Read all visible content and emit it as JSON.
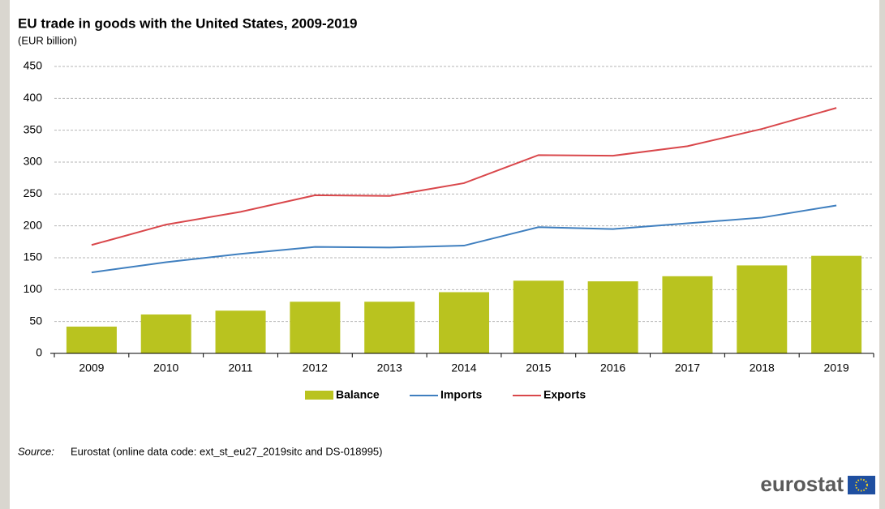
{
  "chart_data": {
    "type": "combo",
    "title": "EU trade in goods with the United States, 2009-2019",
    "subtitle": "(EUR billion)",
    "categories": [
      "2009",
      "2010",
      "2011",
      "2012",
      "2013",
      "2014",
      "2015",
      "2016",
      "2017",
      "2018",
      "2019"
    ],
    "series": [
      {
        "name": "Balance",
        "type": "bar",
        "color": "#b9c31f",
        "values": [
          42,
          61,
          67,
          81,
          81,
          96,
          114,
          113,
          121,
          138,
          153
        ]
      },
      {
        "name": "Imports",
        "type": "line",
        "color": "#3f7fbf",
        "values": [
          127,
          143,
          156,
          167,
          166,
          169,
          198,
          195,
          204,
          213,
          232
        ]
      },
      {
        "name": "Exports",
        "type": "line",
        "color": "#d9474b",
        "values": [
          170,
          202,
          222,
          248,
          247,
          267,
          311,
          310,
          325,
          352,
          385
        ]
      }
    ],
    "ylim": [
      0,
      450
    ],
    "yticks": [
      0,
      50,
      100,
      150,
      200,
      250,
      300,
      350,
      400,
      450
    ],
    "grid": true,
    "legend": "bottom",
    "source_label": "Source:",
    "source": "Eurostat (online data code: ext_st_eu27_2019sitc and DS-018995)",
    "logo": "eurostat"
  }
}
